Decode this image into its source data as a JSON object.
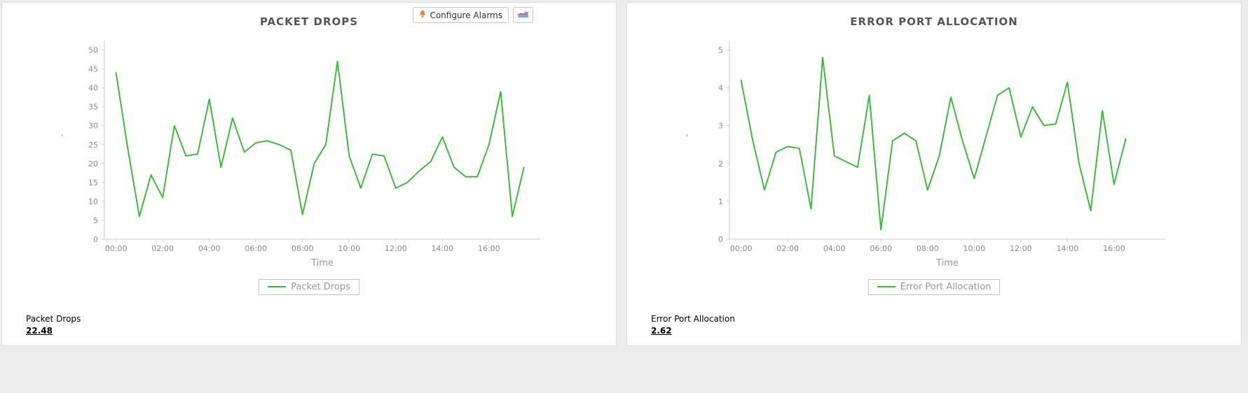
{
  "toolbar": {
    "configure_alarms_label": "Configure Alarms"
  },
  "panels": [
    {
      "title": "PACKET DROPS",
      "xlabel": "Time",
      "legend_label": "Packet Drops",
      "footer_label": "Packet Drops",
      "footer_value": "22.48"
    },
    {
      "title": "ERROR PORT ALLOCATION",
      "xlabel": "Time",
      "legend_label": "Error Port Allocation",
      "footer_label": "Error Port Allocation",
      "footer_value": "2.62"
    }
  ],
  "colors": {
    "line_green": "#3dbb3d",
    "axis": "#c9c9c9",
    "tick_text": "#8a8a8a",
    "axis_title_text": "#9a9a9a",
    "title_text": "#555555",
    "legend_text": "#999999"
  },
  "chart_data": [
    {
      "type": "line",
      "title": "PACKET DROPS",
      "xlabel": "Time",
      "ylabel": "'",
      "grid": false,
      "legend_position": "bottom",
      "xlim": [
        -0.5,
        18.2
      ],
      "ylim": [
        0,
        52.5
      ],
      "y_ticks": [
        0,
        5,
        10,
        15,
        20,
        25,
        30,
        35,
        40,
        45,
        50
      ],
      "x_ticks": [
        0,
        2,
        4,
        6,
        8,
        10,
        12,
        14,
        16
      ],
      "x_tick_labels": [
        "00:00",
        "02:00",
        "04:00",
        "06:00",
        "08:00",
        "10:00",
        "12:00",
        "14:00",
        "16:00"
      ],
      "series": [
        {
          "name": "Packet Drops",
          "color": "#3dbb3d",
          "x_start": 0,
          "x_step": 0.5,
          "values": [
            44,
            24,
            6,
            17,
            11,
            30,
            22,
            22.5,
            37,
            19,
            32,
            23,
            25.5,
            26,
            25,
            23.5,
            6.5,
            20,
            25,
            47,
            22,
            13.5,
            22.5,
            22,
            13.5,
            15,
            18,
            20.5,
            27,
            19,
            16.5,
            16.5,
            25,
            39,
            6,
            19
          ]
        }
      ]
    },
    {
      "type": "line",
      "title": "ERROR PORT ALLOCATION",
      "xlabel": "Time",
      "ylabel": "'",
      "grid": false,
      "legend_position": "bottom",
      "xlim": [
        -0.5,
        18.2
      ],
      "ylim": [
        0,
        5.25
      ],
      "y_ticks": [
        0,
        1,
        2,
        3,
        4,
        5
      ],
      "x_ticks": [
        0,
        2,
        4,
        6,
        8,
        10,
        12,
        14,
        16
      ],
      "x_tick_labels": [
        "00:00",
        "02:00",
        "04:00",
        "06:00",
        "08:00",
        "10:00",
        "12:00",
        "14:00",
        "16:00"
      ],
      "series": [
        {
          "name": "Error Port Allocation",
          "color": "#3dbb3d",
          "x_start": 0,
          "x_step": 0.5,
          "values": [
            4.2,
            2.6,
            1.3,
            2.3,
            2.45,
            2.4,
            0.8,
            4.8,
            2.2,
            2.05,
            1.9,
            3.8,
            0.25,
            2.6,
            2.8,
            2.6,
            1.3,
            2.2,
            3.75,
            2.6,
            1.6,
            2.7,
            3.8,
            4.0,
            2.7,
            3.5,
            3.0,
            3.05,
            4.15,
            2.0,
            0.75,
            3.4,
            1.45,
            2.65
          ]
        }
      ]
    }
  ]
}
